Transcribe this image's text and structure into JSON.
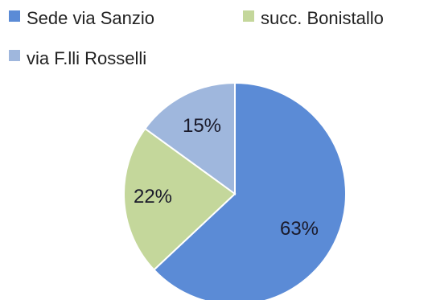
{
  "chart_data": {
    "type": "pie",
    "title": "",
    "legend_position": "top",
    "categories": [
      "Sede via Sanzio",
      "succ. Bonistallo",
      "via F.lli Rosselli"
    ],
    "values": [
      63,
      22,
      15
    ],
    "labels": [
      "63%",
      "22%",
      "15%"
    ],
    "colors": [
      "#5b8bd6",
      "#c4d79b",
      "#9fb7dd"
    ]
  }
}
